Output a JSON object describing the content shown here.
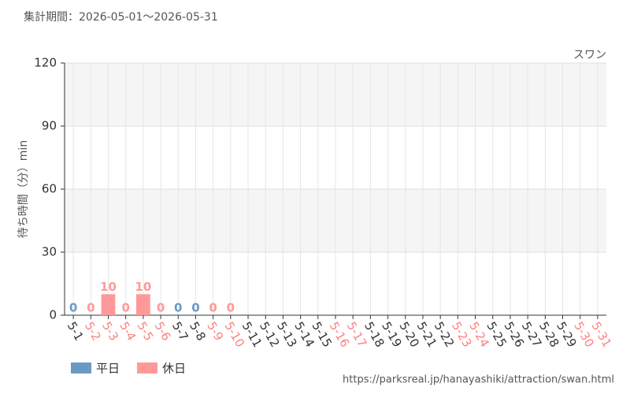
{
  "chart_data": {
    "type": "bar",
    "title": "集計期間：2026-05-01～2026-05-31",
    "subtitle": "スワン",
    "y_label": "待ち時間（分）min",
    "source": "https://parksreal.jp/hanayashiki/attraction/swan.html",
    "categories": [
      "5-1",
      "5-2",
      "5-3",
      "5-4",
      "5-5",
      "5-6",
      "5-7",
      "5-8",
      "5-9",
      "5-10",
      "5-11",
      "5-12",
      "5-13",
      "5-14",
      "5-15",
      "5-16",
      "5-17",
      "5-18",
      "5-19",
      "5-20",
      "5-21",
      "5-22",
      "5-23",
      "5-24",
      "5-25",
      "5-26",
      "5-27",
      "5-28",
      "5-29",
      "5-30",
      "5-31"
    ],
    "category_colors": [
      "#333333",
      "#ff8080",
      "#ff8080",
      "#ff8080",
      "#ff8080",
      "#ff8080",
      "#333333",
      "#333333",
      "#ff8080",
      "#ff8080",
      "#333333",
      "#333333",
      "#333333",
      "#333333",
      "#333333",
      "#ff8080",
      "#ff8080",
      "#333333",
      "#333333",
      "#333333",
      "#333333",
      "#333333",
      "#ff8080",
      "#ff8080",
      "#333333",
      "#333333",
      "#333333",
      "#333333",
      "#333333",
      "#ff8080",
      "#ff8080"
    ],
    "series": [
      {
        "name": "平日",
        "color": "#6a9ac4",
        "values": [
          0,
          null,
          null,
          null,
          null,
          null,
          0,
          0,
          null,
          null,
          null,
          null,
          null,
          null,
          null,
          null,
          null,
          null,
          null,
          null,
          null,
          null,
          null,
          null,
          null,
          null,
          null,
          null,
          null,
          null,
          null
        ]
      },
      {
        "name": "休日",
        "color": "#ff9999",
        "values": [
          null,
          0,
          10,
          0,
          10,
          0,
          null,
          null,
          0,
          0,
          null,
          null,
          null,
          null,
          null,
          null,
          null,
          null,
          null,
          null,
          null,
          null,
          null,
          null,
          null,
          null,
          null,
          null,
          null,
          null,
          null
        ]
      }
    ],
    "ylim": [
      0,
      120
    ],
    "yticks": [
      0,
      30,
      60,
      90,
      120
    ],
    "grid": true
  }
}
